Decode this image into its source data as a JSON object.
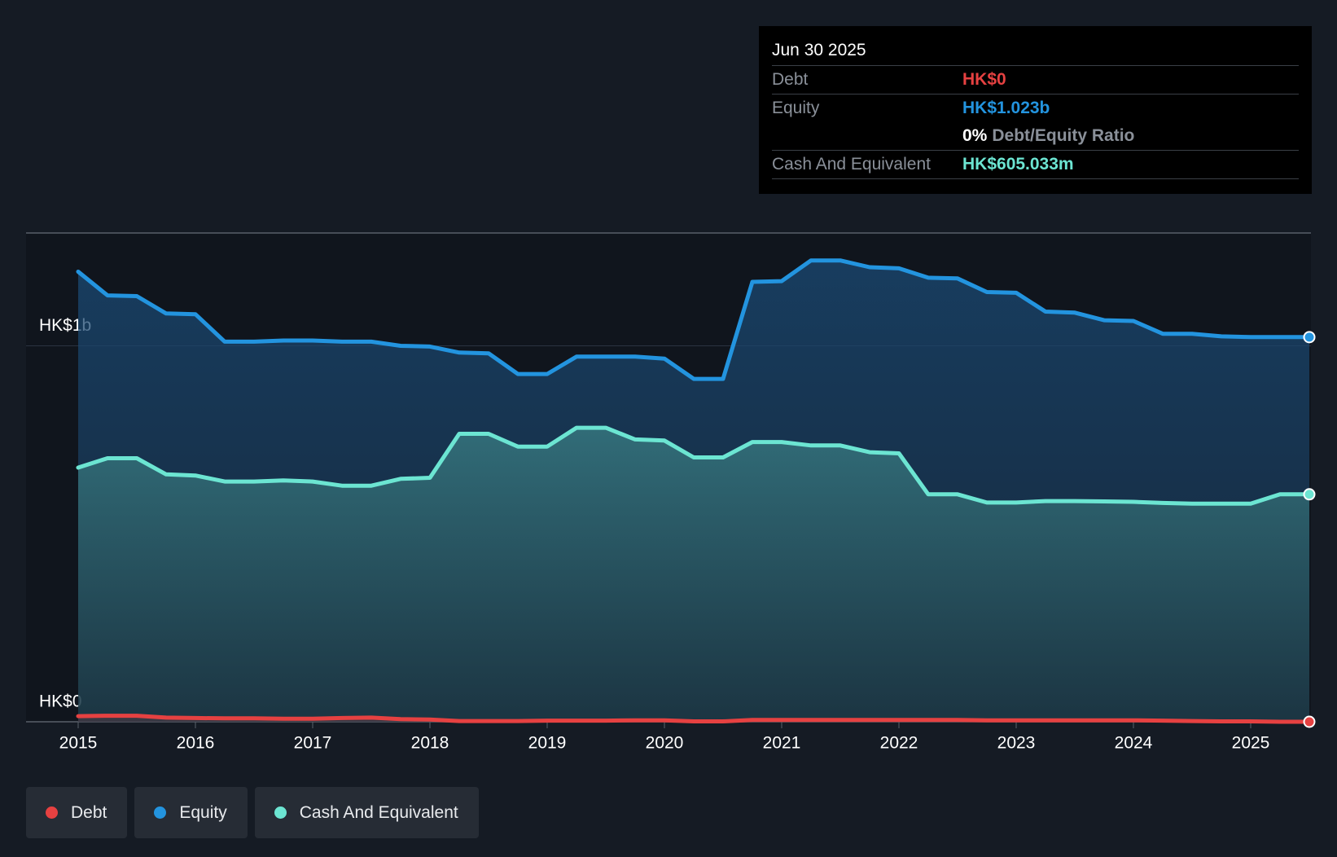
{
  "chart_data": {
    "type": "area",
    "xlim": [
      2015,
      2025.5
    ],
    "xticks": [
      2015,
      2016,
      2017,
      2018,
      2019,
      2020,
      2021,
      2022,
      2023,
      2024,
      2025
    ],
    "ylim": [
      0,
      1.3
    ],
    "yticks": [
      {
        "value": 0,
        "label": "HK$0"
      },
      {
        "value": 1,
        "label": "HK$1b"
      }
    ],
    "grid": true,
    "x": [
      2015,
      2015.25,
      2015.5,
      2015.75,
      2016,
      2016.25,
      2016.5,
      2016.75,
      2017,
      2017.25,
      2017.5,
      2017.75,
      2018,
      2018.25,
      2018.5,
      2018.75,
      2019,
      2019.25,
      2019.5,
      2019.75,
      2020,
      2020.25,
      2020.5,
      2020.75,
      2021,
      2021.25,
      2021.5,
      2021.75,
      2022,
      2022.25,
      2022.5,
      2022.75,
      2023,
      2023.25,
      2023.5,
      2023.75,
      2024,
      2024.25,
      2024.5,
      2024.75,
      2025,
      2025.25,
      2025.5
    ],
    "series": [
      {
        "name": "Debt",
        "color": "#e64141",
        "values": [
          0.015,
          0.016,
          0.016,
          0.011,
          0.01,
          0.009,
          0.009,
          0.008,
          0.008,
          0.01,
          0.011,
          0.007,
          0.006,
          0.002,
          0.002,
          0.002,
          0.003,
          0.003,
          0.003,
          0.004,
          0.004,
          0.001,
          0.001,
          0.005,
          0.005,
          0.005,
          0.005,
          0.005,
          0.005,
          0.005,
          0.005,
          0.004,
          0.004,
          0.004,
          0.004,
          0.004,
          0.004,
          0.003,
          0.002,
          0.001,
          0.001,
          0,
          0
        ]
      },
      {
        "name": "Equity",
        "color": "#2394df",
        "values": [
          1.197,
          1.134,
          1.132,
          1.086,
          1.084,
          1.011,
          1.011,
          1.014,
          1.014,
          1.011,
          1.011,
          1.0,
          0.998,
          0.982,
          0.98,
          0.925,
          0.925,
          0.971,
          0.971,
          0.971,
          0.966,
          0.912,
          0.912,
          1.17,
          1.172,
          1.227,
          1.227,
          1.209,
          1.206,
          1.181,
          1.179,
          1.143,
          1.141,
          1.091,
          1.088,
          1.068,
          1.066,
          1.032,
          1.032,
          1.025,
          1.023,
          1.023,
          1.023
        ]
      },
      {
        "name": "Cash And Equivalent",
        "color": "#6ce5d2",
        "values": [
          0.676,
          0.701,
          0.701,
          0.658,
          0.655,
          0.639,
          0.639,
          0.642,
          0.639,
          0.628,
          0.628,
          0.646,
          0.649,
          0.766,
          0.766,
          0.732,
          0.732,
          0.782,
          0.782,
          0.751,
          0.748,
          0.703,
          0.703,
          0.744,
          0.744,
          0.735,
          0.735,
          0.717,
          0.714,
          0.605,
          0.605,
          0.583,
          0.583,
          0.587,
          0.587,
          0.586,
          0.585,
          0.582,
          0.58,
          0.58,
          0.58,
          0.605,
          0.605
        ]
      }
    ]
  },
  "tooltip": {
    "date": "Jun 30 2025",
    "rows": [
      {
        "label": "Debt",
        "value": "HK$0"
      },
      {
        "label": "Equity",
        "value": "HK$1.023b"
      },
      {
        "label": "",
        "value": "0%",
        "note": "Debt/Equity Ratio"
      },
      {
        "label": "Cash And Equivalent",
        "value": "HK$605.033m"
      }
    ]
  }
}
